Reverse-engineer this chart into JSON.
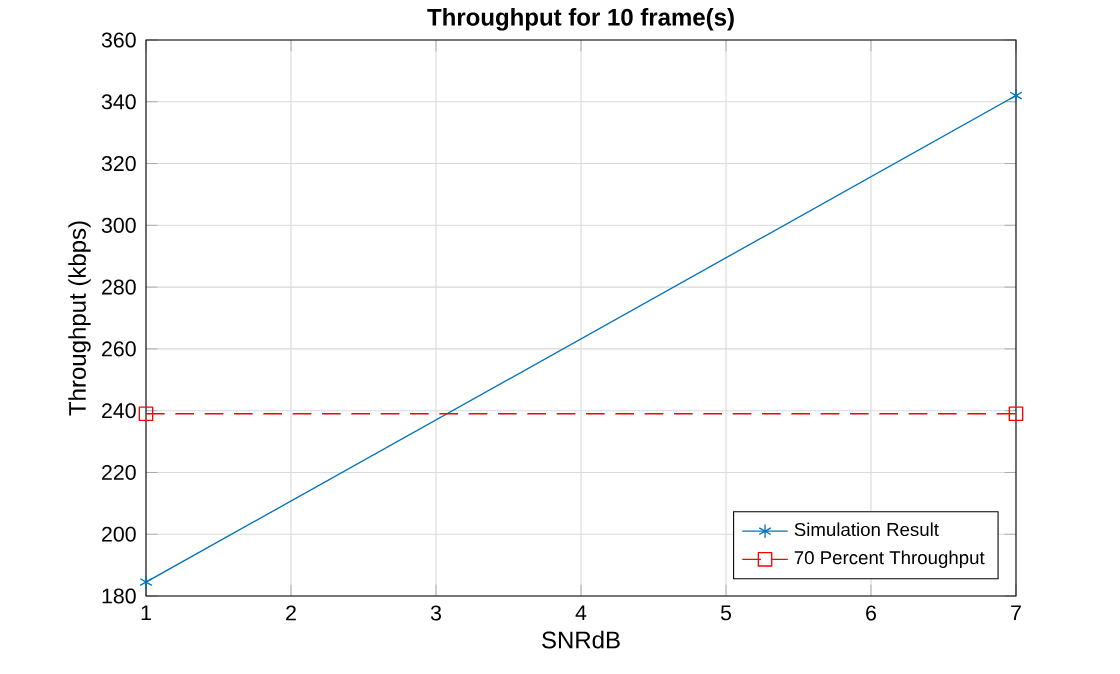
{
  "chart_data": {
    "type": "line",
    "title": "Throughput for 10 frame(s)",
    "xlabel": "SNRdB",
    "ylabel": "Throughput (kbps)",
    "x": [
      1,
      7
    ],
    "series": [
      {
        "name": "Simulation Result",
        "color": "#0072bd",
        "values": [
          184.5,
          342
        ],
        "marker": "cross",
        "line_style": "solid"
      },
      {
        "name": "70 Percent Throughput",
        "color": "#ff0000",
        "values": [
          239,
          239
        ],
        "marker": "square",
        "line_style": "dashed"
      }
    ],
    "xlim": [
      1,
      7
    ],
    "xticks": [
      1,
      2,
      3,
      4,
      5,
      6,
      7
    ],
    "ylim": [
      180,
      360
    ],
    "yticks": [
      180,
      200,
      220,
      240,
      260,
      280,
      300,
      320,
      340,
      360
    ],
    "grid": true,
    "legend": "bottom right"
  }
}
